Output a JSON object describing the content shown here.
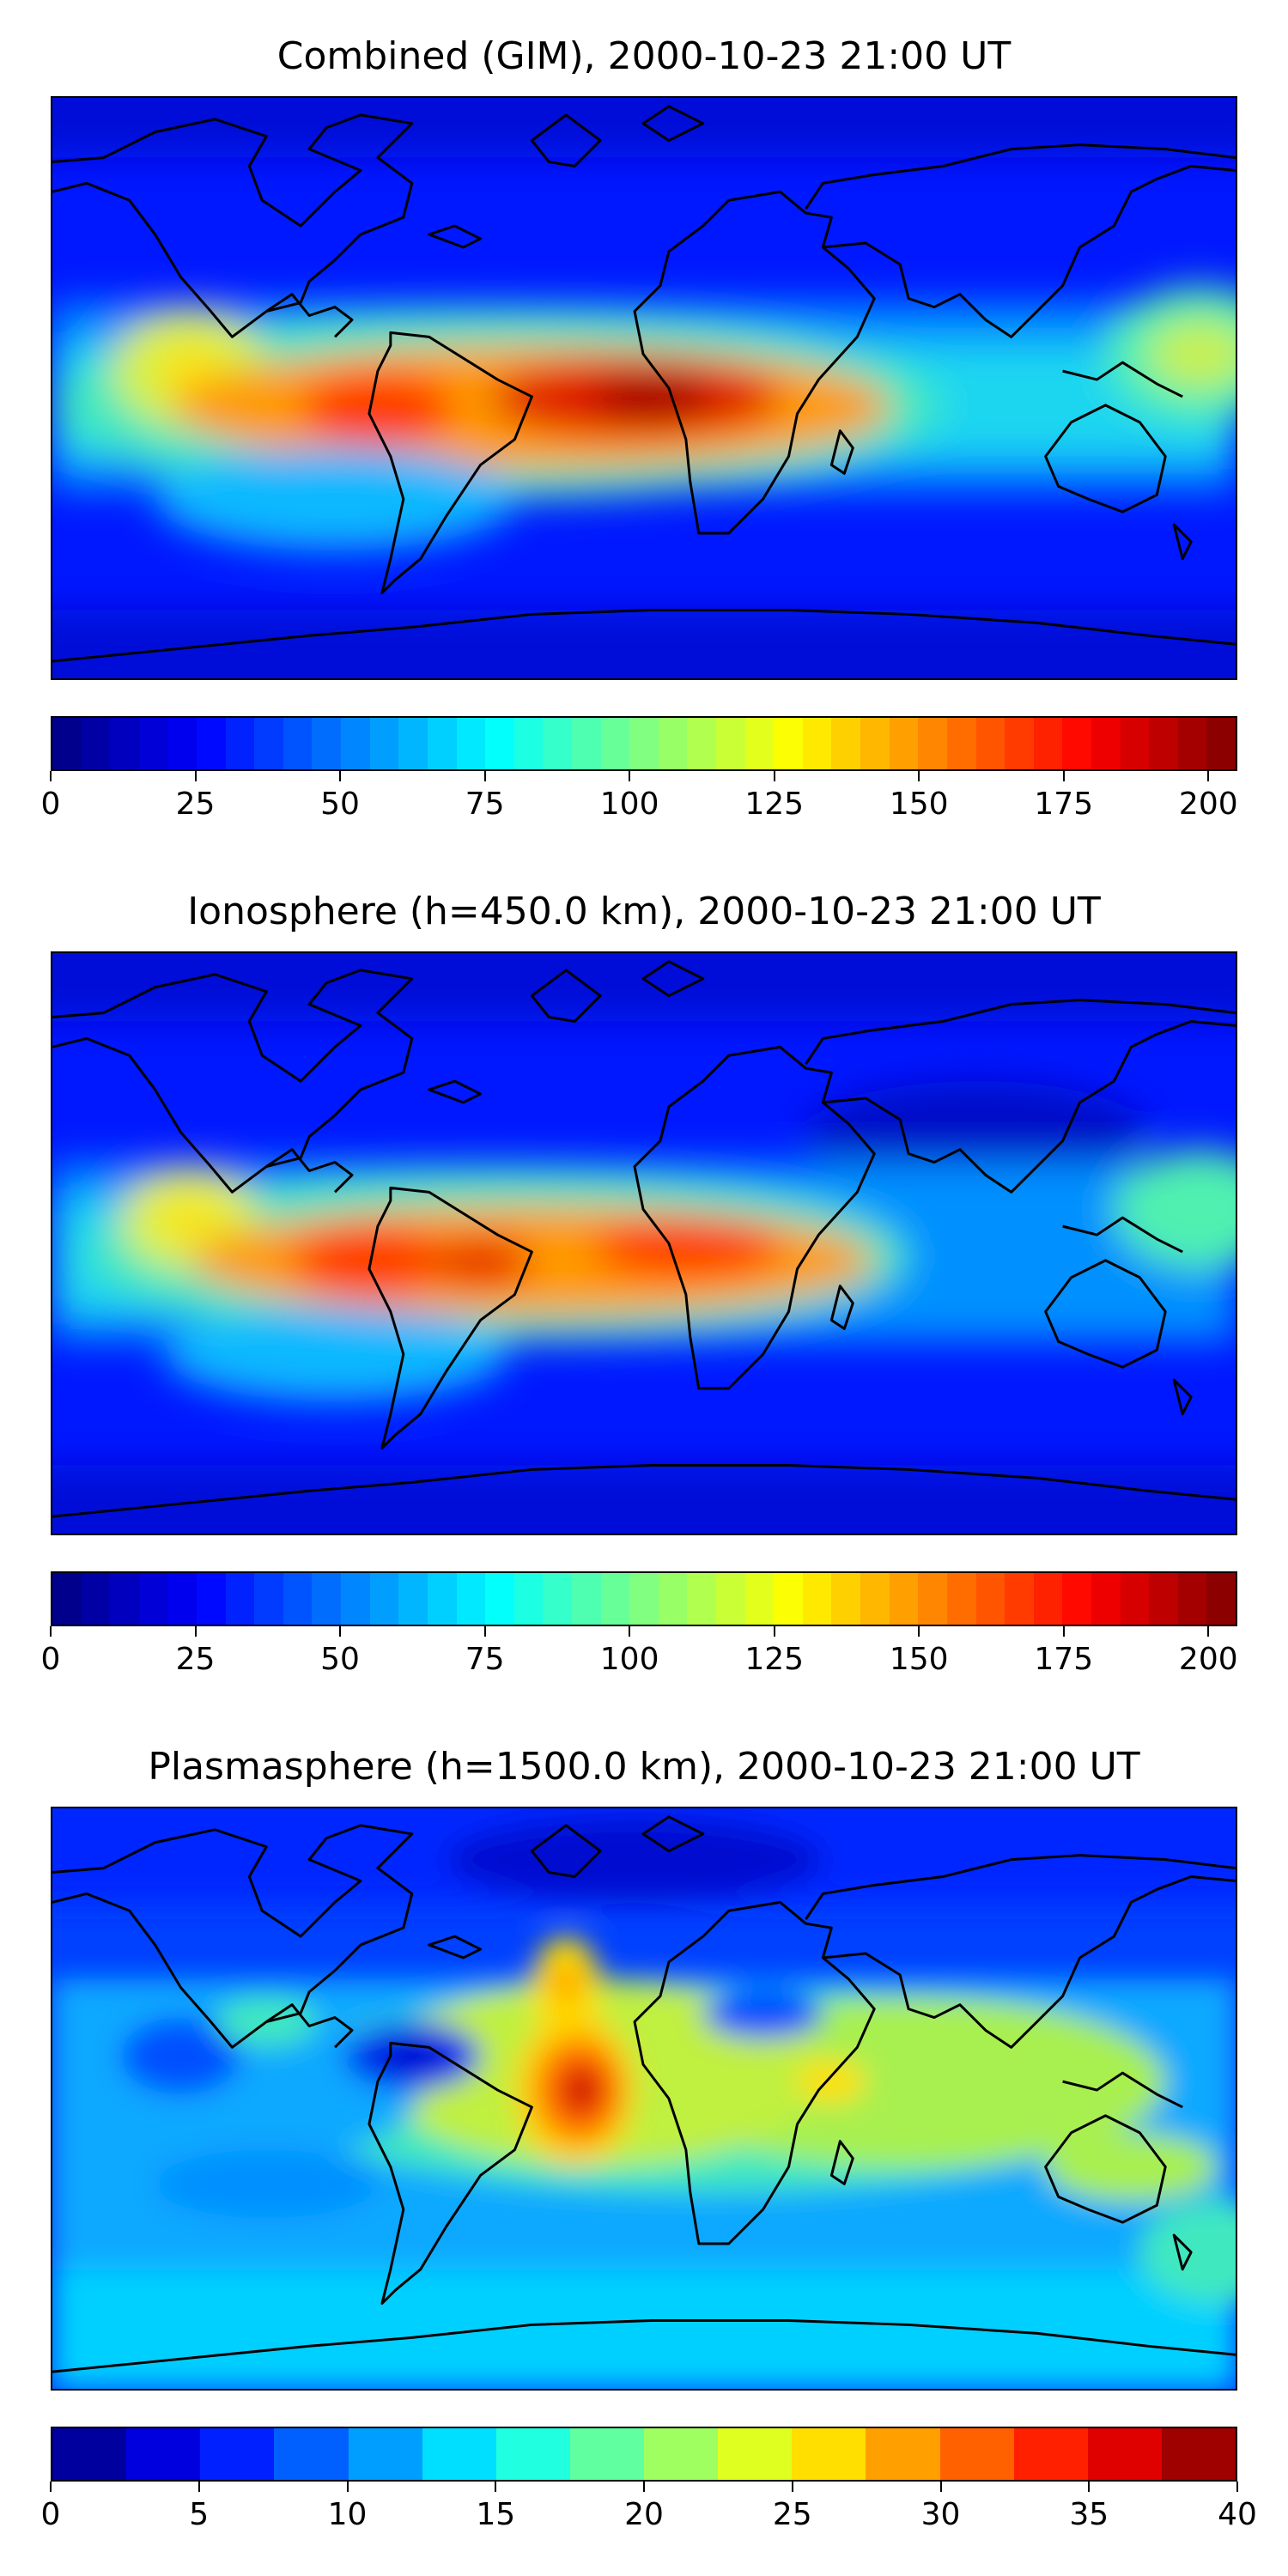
{
  "panels": [
    {
      "title": "Combined (GIM), 2000-10-23 21:00 UT",
      "colorbar": {
        "min": 0,
        "max": 205,
        "step": 5,
        "ticks": [
          "0",
          "25",
          "50",
          "75",
          "100",
          "125",
          "150",
          "175",
          "200"
        ],
        "tick_values": [
          0,
          25,
          50,
          75,
          100,
          125,
          150,
          175,
          200
        ]
      }
    },
    {
      "title": "Ionosphere  (h=450.0 km), 2000-10-23 21:00 UT",
      "colorbar": {
        "min": 0,
        "max": 205,
        "step": 5,
        "ticks": [
          "0",
          "25",
          "50",
          "75",
          "100",
          "125",
          "150",
          "175",
          "200"
        ],
        "tick_values": [
          0,
          25,
          50,
          75,
          100,
          125,
          150,
          175,
          200
        ]
      }
    },
    {
      "title": "Plasmasphere (h=1500.0 km), 2000-10-23 21:00 UT",
      "colorbar": {
        "min": 0,
        "max": 40,
        "step": 2.5,
        "ticks": [
          "0",
          "5",
          "10",
          "15",
          "20",
          "25",
          "30",
          "35",
          "40"
        ],
        "tick_values": [
          0,
          5,
          10,
          15,
          20,
          25,
          30,
          35,
          40
        ]
      }
    }
  ],
  "colormap": "jet",
  "coastline_color": "#000000"
}
